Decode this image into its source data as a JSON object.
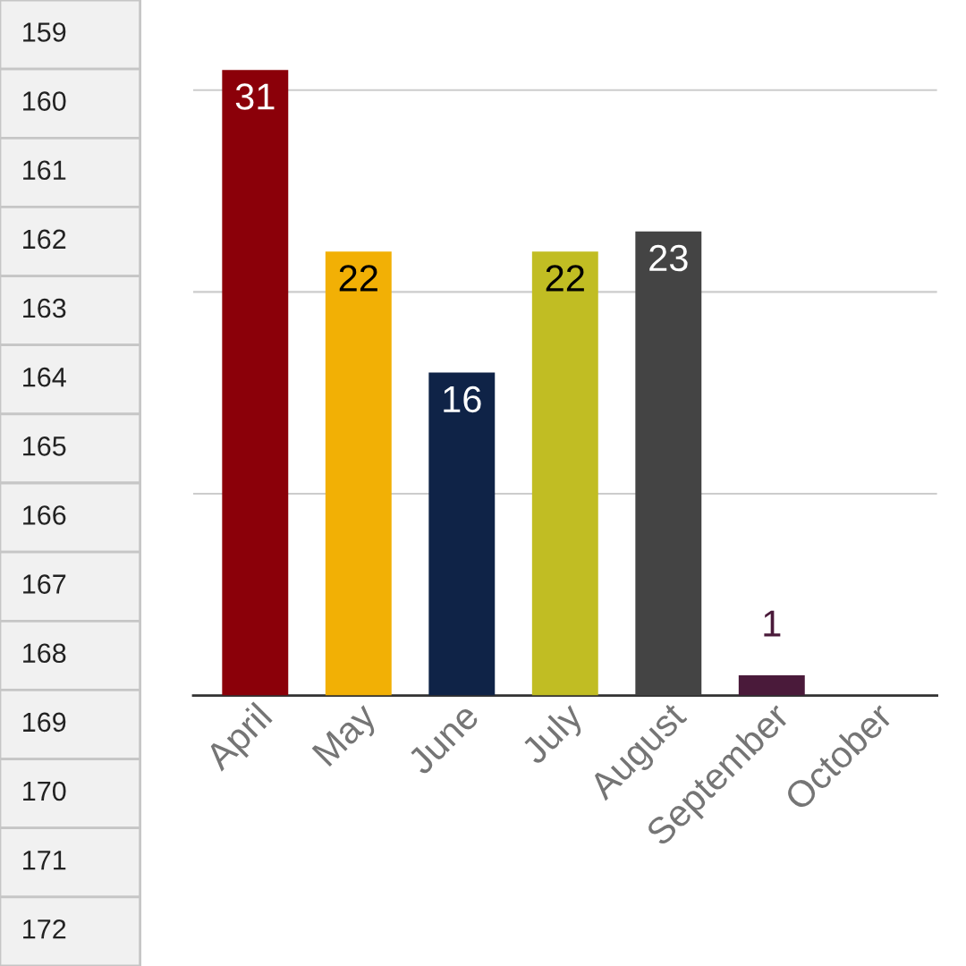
{
  "chart_data": {
    "type": "bar",
    "categories": [
      "April",
      "May",
      "June",
      "July",
      "August",
      "September",
      "October"
    ],
    "values": [
      31,
      22,
      16,
      22,
      23,
      1,
      null
    ],
    "colors": [
      "#8b0009",
      "#f2b005",
      "#0f2347",
      "#c1bd23",
      "#444444",
      "#4a1a3a",
      "#888888"
    ],
    "yticks": [
      {
        "value": 0,
        "label": null
      },
      {
        "value": 10,
        "label": null
      },
      {
        "value": 20,
        "label": null
      },
      {
        "value": 30,
        "label": null
      }
    ],
    "grid": "y",
    "tick_labels": "x",
    "data_labels": true,
    "annotations": [
      "159",
      "160",
      "161",
      "162",
      "163",
      "164",
      "165",
      "166",
      "167",
      "168",
      "169",
      "170",
      "171",
      "172"
    ]
  }
}
